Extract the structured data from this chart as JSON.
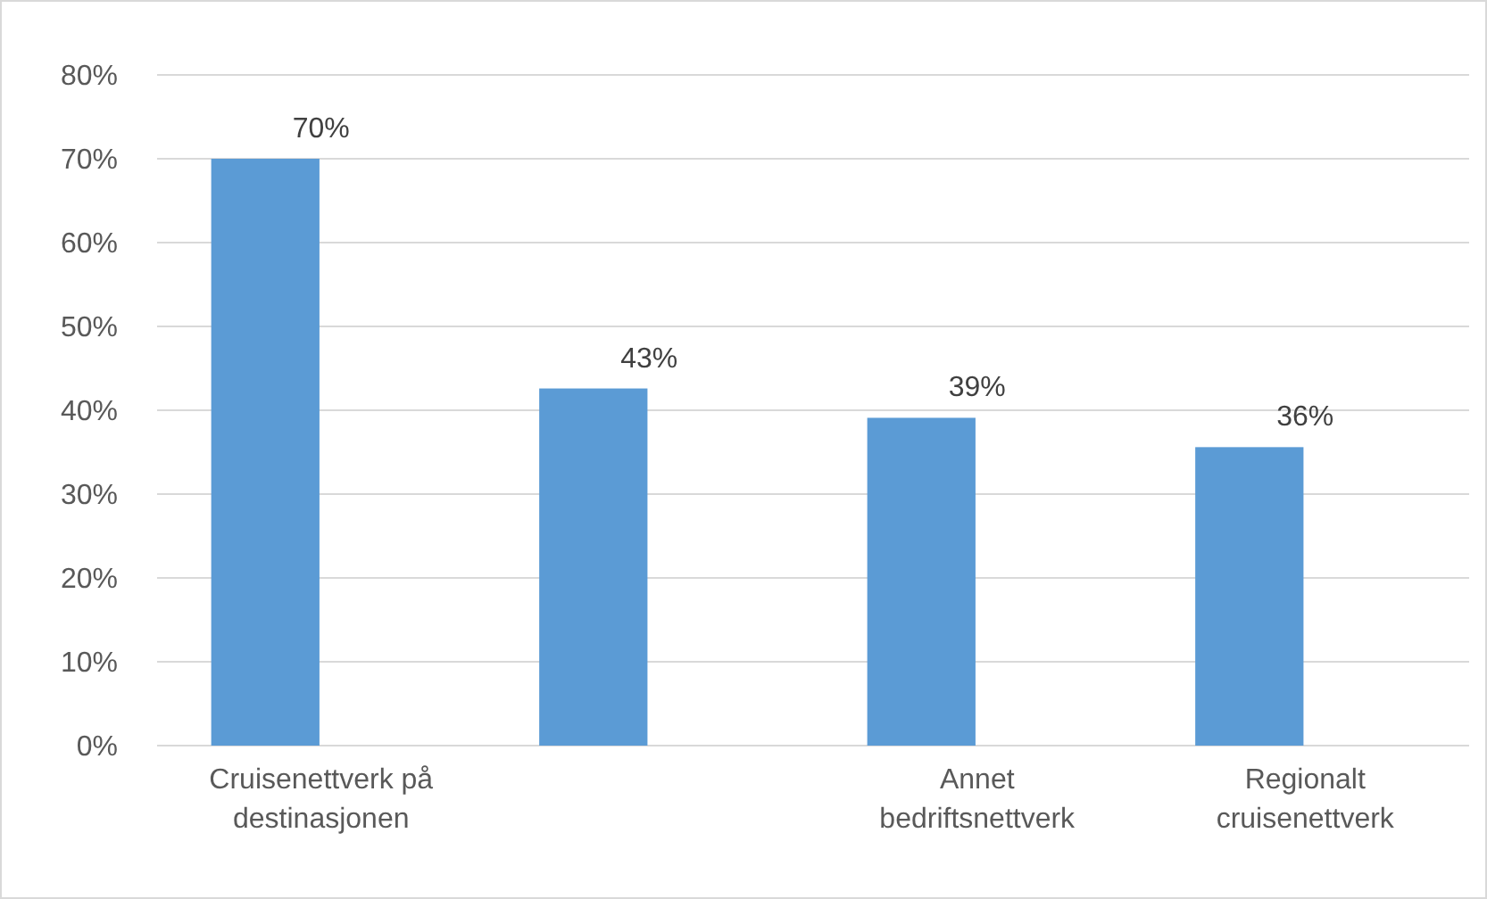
{
  "chart_data": {
    "type": "bar",
    "categories": [
      "Cruisenettverk på destinasjonen",
      null,
      "Annet bedriftsnettverk",
      "Regionalt cruisenettverk"
    ],
    "values": [
      70,
      42.6,
      39.1,
      35.6
    ],
    "value_labels": [
      "70%",
      "43%",
      "39%",
      "36%"
    ],
    "color": "#5b9bd5",
    "ylim": [
      0,
      80
    ],
    "yticks": [
      {
        "value": 0,
        "label": "0%"
      },
      {
        "value": 10,
        "label": "10%"
      },
      {
        "value": 20,
        "label": "20%"
      },
      {
        "value": 30,
        "label": "30%"
      },
      {
        "value": 40,
        "label": "40%"
      },
      {
        "value": 50,
        "label": "50%"
      },
      {
        "value": 60,
        "label": "60%"
      },
      {
        "value": 70,
        "label": "70%"
      },
      {
        "value": 80,
        "label": "80%"
      }
    ],
    "grid": "y"
  }
}
